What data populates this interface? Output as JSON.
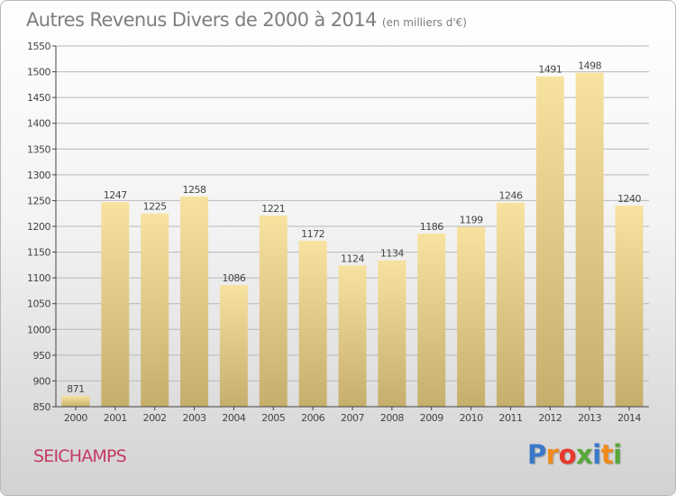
{
  "chart_data": {
    "type": "bar",
    "title": "Autres Revenus Divers de 2000 à 2014",
    "subtitle": "(en milliers d'€)",
    "categories": [
      "2000",
      "2001",
      "2002",
      "2003",
      "2004",
      "2005",
      "2006",
      "2007",
      "2008",
      "2009",
      "2010",
      "2011",
      "2012",
      "2013",
      "2014"
    ],
    "values": [
      871,
      1247,
      1225,
      1258,
      1086,
      1221,
      1172,
      1124,
      1134,
      1186,
      1199,
      1246,
      1491,
      1498,
      1240
    ],
    "ylim": [
      850,
      1550
    ],
    "yticks": [
      850,
      900,
      950,
      1000,
      1050,
      1100,
      1150,
      1200,
      1250,
      1300,
      1350,
      1400,
      1450,
      1500,
      1550
    ],
    "grid": true,
    "legend": "none",
    "bar_color_top": "#f8e2a0",
    "bar_color_bottom": "#c6ae6c"
  },
  "commune": "SEICHAMPS",
  "brand": {
    "letters": [
      "P",
      "r",
      "o",
      "x",
      "i",
      "t",
      "i"
    ],
    "colors": [
      "#3b78c8",
      "#f08a1c",
      "#e8382c",
      "#58a83a",
      "#3b78c8",
      "#f08a1c",
      "#58a83a"
    ]
  },
  "colors": {
    "title": "#7e7e7e",
    "commune": "#c43a62",
    "axis": "#444444",
    "grid": "#b8b8b8"
  }
}
